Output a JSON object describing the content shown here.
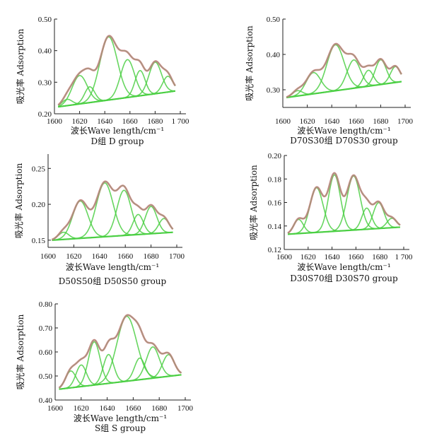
{
  "chart_data": [
    {
      "type": "line",
      "caption": "D组  D group",
      "xlabel": "波长Wave length/cm⁻¹",
      "ylabel": "吸光率  Adsorption",
      "xlim": [
        1600,
        1700
      ],
      "ylim": [
        0.2,
        0.5
      ],
      "x_ticks": [
        {
          "value": 1600,
          "label": "1600"
        },
        {
          "value": 1620,
          "label": "1620"
        },
        {
          "value": 1640,
          "label": "1640"
        },
        {
          "value": 1660,
          "label": "1660"
        },
        {
          "value": 1680,
          "label": "1680"
        },
        {
          "value": 1700,
          "label": "1 700"
        }
      ],
      "y_ticks": [
        {
          "value": 0.2,
          "label": "0.20"
        },
        {
          "value": 0.3,
          "label": "0.30"
        },
        {
          "value": 0.4,
          "label": "0.40"
        },
        {
          "value": 0.5,
          "label": "0.50"
        }
      ],
      "x_range": [
        1603,
        1696
      ],
      "baseline": [
        [
          1603,
          0.222
        ],
        [
          1696,
          0.272
        ]
      ],
      "peaks": [
        {
          "center": 1610,
          "height": 0.02,
          "width": 4
        },
        {
          "center": 1620,
          "height": 0.09,
          "width": 6
        },
        {
          "center": 1628,
          "height": 0.05,
          "width": 4
        },
        {
          "center": 1643,
          "height": 0.2,
          "width": 7
        },
        {
          "center": 1658,
          "height": 0.12,
          "width": 5.5
        },
        {
          "center": 1668,
          "height": 0.08,
          "width": 4
        },
        {
          "center": 1680,
          "height": 0.1,
          "width": 5
        },
        {
          "center": 1690,
          "height": 0.05,
          "width": 4
        }
      ]
    },
    {
      "type": "line",
      "caption": "D70S30组  D70S30 group",
      "xlabel": "波长Wave length/cm⁻¹",
      "ylabel": "吸光率  Adsorption",
      "xlim": [
        1600,
        1700
      ],
      "ylim": [
        0.25,
        0.5
      ],
      "x_ticks": [
        {
          "value": 1600,
          "label": "1600"
        },
        {
          "value": 1620,
          "label": "1620"
        },
        {
          "value": 1640,
          "label": "1640"
        },
        {
          "value": 1660,
          "label": "1660"
        },
        {
          "value": 1680,
          "label": "1680"
        },
        {
          "value": 1700,
          "label": "1700"
        }
      ],
      "y_ticks": [
        {
          "value": 0.3,
          "label": "0.30"
        },
        {
          "value": 0.4,
          "label": "0.40"
        },
        {
          "value": 0.5,
          "label": "0.50"
        }
      ],
      "x_range": [
        1603,
        1697
      ],
      "baseline": [
        [
          1603,
          0.278
        ],
        [
          1697,
          0.323
        ]
      ],
      "peaks": [
        {
          "center": 1612,
          "height": 0.015,
          "width": 4
        },
        {
          "center": 1625,
          "height": 0.06,
          "width": 6
        },
        {
          "center": 1643,
          "height": 0.13,
          "width": 7
        },
        {
          "center": 1658,
          "height": 0.08,
          "width": 5.5
        },
        {
          "center": 1670,
          "height": 0.045,
          "width": 4
        },
        {
          "center": 1680,
          "height": 0.07,
          "width": 4.5
        },
        {
          "center": 1692,
          "height": 0.045,
          "width": 4
        }
      ]
    },
    {
      "type": "line",
      "caption": "D50S50组  D50S50 group",
      "xlabel": "波长Wave length/cm⁻¹",
      "ylabel": "吸光率  Adsorption",
      "xlim": [
        1600,
        1700
      ],
      "ylim": [
        0.14,
        0.27
      ],
      "x_ticks": [
        {
          "value": 1600,
          "label": "1600"
        },
        {
          "value": 1620,
          "label": "1620"
        },
        {
          "value": 1640,
          "label": "1640"
        },
        {
          "value": 1660,
          "label": "1660"
        },
        {
          "value": 1680,
          "label": "1680"
        },
        {
          "value": 1700,
          "label": "1700"
        }
      ],
      "y_ticks": [
        {
          "value": 0.15,
          "label": "0.15"
        },
        {
          "value": 0.2,
          "label": "0.20"
        },
        {
          "value": 0.25,
          "label": "0.25"
        }
      ],
      "x_range": [
        1603,
        1697
      ],
      "baseline": [
        [
          1603,
          0.15
        ],
        [
          1697,
          0.161
        ]
      ],
      "peaks": [
        {
          "center": 1612,
          "height": 0.01,
          "width": 4
        },
        {
          "center": 1625,
          "height": 0.052,
          "width": 6
        },
        {
          "center": 1644,
          "height": 0.075,
          "width": 6.5
        },
        {
          "center": 1659,
          "height": 0.063,
          "width": 5.5
        },
        {
          "center": 1670,
          "height": 0.028,
          "width": 4
        },
        {
          "center": 1680,
          "height": 0.038,
          "width": 4.5
        },
        {
          "center": 1690,
          "height": 0.02,
          "width": 4
        }
      ]
    },
    {
      "type": "line",
      "caption": "D30S70组  D30S70 group",
      "xlabel": "波长Wave length/cm⁻¹",
      "ylabel": "吸光率  Adsorption",
      "xlim": [
        1600,
        1700
      ],
      "ylim": [
        0.12,
        0.2
      ],
      "x_ticks": [
        {
          "value": 1600,
          "label": "1600"
        },
        {
          "value": 1620,
          "label": "1620"
        },
        {
          "value": 1640,
          "label": "1640"
        },
        {
          "value": 1660,
          "label": "1660"
        },
        {
          "value": 1680,
          "label": "1680"
        },
        {
          "value": 1700,
          "label": "1 700"
        }
      ],
      "y_ticks": [
        {
          "value": 0.12,
          "label": "0.12"
        },
        {
          "value": 0.14,
          "label": "0.14"
        },
        {
          "value": 0.16,
          "label": "0.16"
        },
        {
          "value": 0.18,
          "label": "0.18"
        },
        {
          "value": 0.2,
          "label": "0.20"
        }
      ],
      "x_range": [
        1603,
        1697
      ],
      "baseline": [
        [
          1603,
          0.133
        ],
        [
          1697,
          0.139
        ]
      ],
      "peaks": [
        {
          "center": 1612,
          "height": 0.012,
          "width": 4
        },
        {
          "center": 1627,
          "height": 0.038,
          "width": 5.5
        },
        {
          "center": 1642,
          "height": 0.048,
          "width": 5
        },
        {
          "center": 1658,
          "height": 0.046,
          "width": 5.5
        },
        {
          "center": 1669,
          "height": 0.018,
          "width": 4
        },
        {
          "center": 1679,
          "height": 0.022,
          "width": 4.5
        },
        {
          "center": 1690,
          "height": 0.008,
          "width": 4
        }
      ]
    },
    {
      "type": "line",
      "caption": "S组  S group",
      "xlabel": "波长Wave length/cm⁻¹",
      "ylabel": "吸光率  Adsorption",
      "xlim": [
        1600,
        1700
      ],
      "ylim": [
        0.4,
        0.8
      ],
      "x_ticks": [
        {
          "value": 1600,
          "label": "1600"
        },
        {
          "value": 1620,
          "label": "1620"
        },
        {
          "value": 1640,
          "label": "1640"
        },
        {
          "value": 1660,
          "label": "1660"
        },
        {
          "value": 1680,
          "label": "1680"
        },
        {
          "value": 1700,
          "label": "1700"
        }
      ],
      "y_ticks": [
        {
          "value": 0.4,
          "label": "0.40"
        },
        {
          "value": 0.5,
          "label": "0.50"
        },
        {
          "value": 0.6,
          "label": "0.60"
        },
        {
          "value": 0.7,
          "label": "0.70"
        },
        {
          "value": 0.8,
          "label": "0.80"
        }
      ],
      "x_range": [
        1603,
        1697
      ],
      "baseline": [
        [
          1603,
          0.445
        ],
        [
          1697,
          0.505
        ]
      ],
      "peaks": [
        {
          "center": 1612,
          "height": 0.07,
          "width": 4
        },
        {
          "center": 1620,
          "height": 0.09,
          "width": 4
        },
        {
          "center": 1630,
          "height": 0.18,
          "width": 4.5
        },
        {
          "center": 1641,
          "height": 0.12,
          "width": 4
        },
        {
          "center": 1655,
          "height": 0.27,
          "width": 7.5
        },
        {
          "center": 1665,
          "height": 0.09,
          "width": 4
        },
        {
          "center": 1675,
          "height": 0.13,
          "width": 5
        },
        {
          "center": 1687,
          "height": 0.09,
          "width": 4.5
        }
      ]
    }
  ]
}
